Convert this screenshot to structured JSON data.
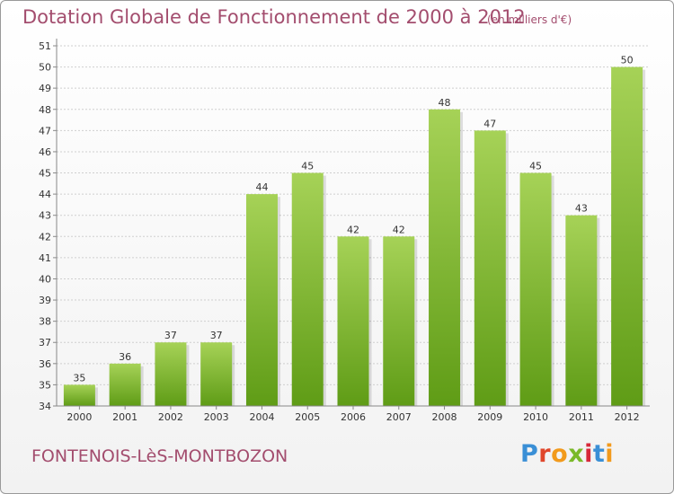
{
  "header": {
    "title": "Dotation Globale de Fonctionnement de 2000 à 2012",
    "unit": "(en milliers d'€)"
  },
  "footer": {
    "city": "FONTENOIS-LèS-MONTBOZON",
    "logo_text": "Proxiti",
    "logo_colors": [
      "#3a8fd6",
      "#e0462b",
      "#f29a1c",
      "#7ab929",
      "#d7283a",
      "#3a8fd6",
      "#f29a1c"
    ]
  },
  "colors": {
    "title": "#a34d6e",
    "bar_light": "#a6d257",
    "bar_dark": "#5f9c16",
    "grid": "#cfcfcf",
    "axis_text": "#333333"
  },
  "chart_data": {
    "type": "bar",
    "title": "Dotation Globale de Fonctionnement de 2000 à 2012",
    "subtitle": "(en milliers d'€)",
    "categories": [
      "2000",
      "2001",
      "2002",
      "2003",
      "2004",
      "2005",
      "2006",
      "2007",
      "2008",
      "2009",
      "2010",
      "2011",
      "2012"
    ],
    "values": [
      35,
      36,
      37,
      37,
      44,
      45,
      42,
      42,
      48,
      47,
      45,
      43,
      50
    ],
    "data_labels": [
      "35",
      "36",
      "37",
      "37",
      "44",
      "45",
      "42",
      "42",
      "48",
      "47",
      "45",
      "43",
      "50"
    ],
    "yticks": [
      34,
      35,
      36,
      37,
      38,
      39,
      40,
      41,
      42,
      43,
      44,
      45,
      46,
      47,
      48,
      49,
      50,
      51
    ],
    "ylim": [
      34,
      51
    ],
    "xlabel": "",
    "ylabel": "",
    "grid": true
  }
}
